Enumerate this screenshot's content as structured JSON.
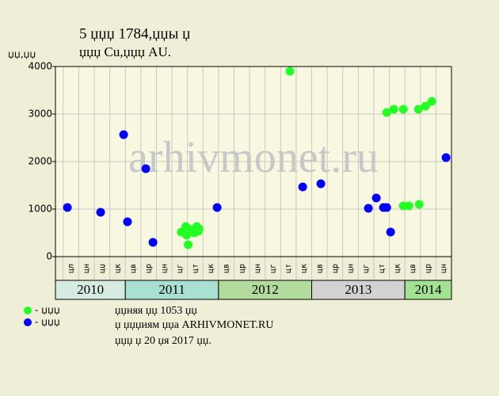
{
  "chart_data": {
    "type": "scatter",
    "title": "5 џџџ 1784,џџы џ",
    "subtitle": "џџџ Cu,џџџ AU.",
    "y_label": "џџ,џџ",
    "watermark": "arhivmonet.ru",
    "groups": [
      {
        "name": "2010",
        "color": "#d6ece2",
        "categories": [
          "цл",
          "цн",
          "цџ",
          "цк"
        ]
      },
      {
        "name": "2011",
        "color": "#a9e0d2",
        "categories": [
          "цв",
          "цр",
          "цн",
          "цг",
          "цт",
          "цк"
        ]
      },
      {
        "name": "2012",
        "color": "#b2dc9e",
        "categories": [
          "цв",
          "цр",
          "цн",
          "цг",
          "цт",
          "цк"
        ]
      },
      {
        "name": "2013",
        "color": "#d2d2d2",
        "categories": [
          "цв",
          "цр",
          "цн",
          "цг",
          "цт",
          "цк"
        ]
      },
      {
        "name": "2014",
        "color": "#a2e292",
        "categories": [
          "цв",
          "цр",
          "цн"
        ]
      }
    ],
    "xlim": [
      0,
      25.5
    ],
    "ylim": [
      0,
      4000
    ],
    "yticks": [
      0,
      1000,
      2000,
      3000,
      4000
    ],
    "grid": true,
    "series": [
      {
        "name": "- џџџ",
        "color": "#22ff22",
        "x": [
          8.1,
          8.4,
          8.45,
          8.55,
          8.75,
          8.95,
          9.1,
          9.25,
          9.2,
          15.1,
          21.33,
          21.79,
          22.4,
          22.4,
          22.76,
          23.37,
          23.42,
          23.83,
          24.23
        ],
        "values": [
          517,
          633,
          450,
          250,
          567,
          500,
          633,
          583,
          533,
          3900,
          3033,
          3100,
          3100,
          1067,
          1067,
          3100,
          1100,
          3167,
          3267
        ]
      },
      {
        "name": "- џџџ",
        "color": "#0000ff",
        "x": [
          0.77,
          2.91,
          4.39,
          4.64,
          5.82,
          6.28,
          10.41,
          15.92,
          17.09,
          20.15,
          20.66,
          21.12,
          21.33,
          21.58,
          25.15
        ],
        "values": [
          1033,
          933,
          2567,
          733,
          1850,
          300,
          1033,
          1467,
          1533,
          1017,
          1233,
          1033,
          1033,
          517,
          2083
        ]
      }
    ],
    "notes": [
      "џџняя џџ 1053 џџ",
      "џ џџџиям џџа ARHIVMONET.RU",
      "џџџ џ 20 џя 2017 џџ."
    ]
  }
}
